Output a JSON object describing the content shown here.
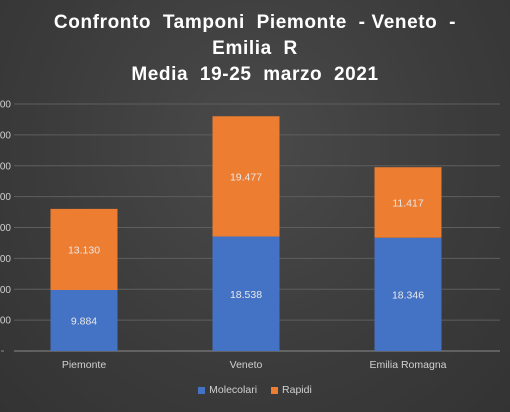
{
  "chart_data": {
    "type": "bar",
    "stacked": true,
    "title_lines": [
      "Confronto  Tamponi  Piemonte  - Veneto  -",
      "Emilia  R",
      "Media  19-25  marzo  2021"
    ],
    "categories": [
      "Piemonte",
      "Veneto",
      "Emilia Romagna"
    ],
    "series": [
      {
        "name": "Molecolari",
        "color": "#4472C4",
        "values": [
          9884,
          18538,
          18346
        ],
        "labels": [
          "9.884",
          "18.538",
          "18.346"
        ]
      },
      {
        "name": "Rapidi",
        "color": "#ED7D31",
        "values": [
          13130,
          19477,
          11417
        ],
        "labels": [
          "13.130",
          "19.477",
          "11.417"
        ]
      }
    ],
    "ylim": [
      0,
      40000
    ],
    "ytick_step": 5000,
    "ytick_labels": [
      "",
      "000",
      "000",
      "000",
      "000",
      "000",
      "000",
      "000",
      "000"
    ],
    "grid": true,
    "legend_position": "bottom"
  }
}
